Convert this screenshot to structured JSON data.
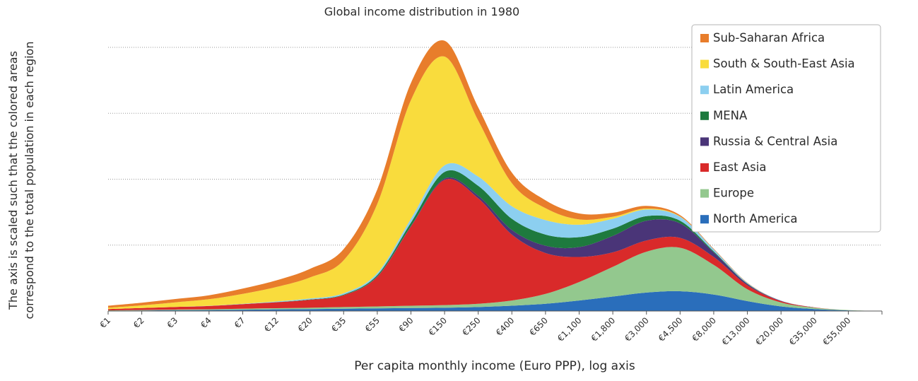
{
  "chart_data": {
    "type": "area",
    "stacked": true,
    "title": "Global income distribution in 1980",
    "xlabel": "Per capita monthly income (Euro PPP), log axis",
    "ylabel_lines": [
      "The axis is scaled such that the colored areas",
      "correspond to the total population in each region"
    ],
    "x_ticks": [
      "€1",
      "€2",
      "€3",
      "€4",
      "€7",
      "€12",
      "€20",
      "€35",
      "€55",
      "€90",
      "€150",
      "€250",
      "€400",
      "€650",
      "€1,100",
      "€1,800",
      "€3,000",
      "€4,500",
      "€8,000",
      "€13,000",
      "€20,000",
      "€35,000",
      "€55,000"
    ],
    "x_positions": [
      0,
      0.5,
      1,
      1.5,
      2,
      2.5,
      3,
      3.5,
      4,
      4.5,
      5,
      5.5,
      6,
      6.5,
      7,
      7.5,
      8,
      8.5,
      9,
      9.5,
      10,
      10.5,
      11,
      11.5
    ],
    "ylim": [
      0,
      4.0
    ],
    "y_gridlines": [
      1,
      2,
      3,
      4
    ],
    "legend_position": "top-right",
    "series": [
      {
        "name": "North America",
        "color": "#2a6ebb",
        "values": [
          0.005,
          0.008,
          0.012,
          0.015,
          0.02,
          0.025,
          0.03,
          0.035,
          0.04,
          0.045,
          0.05,
          0.06,
          0.08,
          0.11,
          0.16,
          0.22,
          0.28,
          0.3,
          0.25,
          0.15,
          0.07,
          0.03,
          0.01,
          0.0
        ]
      },
      {
        "name": "Europe",
        "color": "#93c88e",
        "values": [
          0.005,
          0.008,
          0.01,
          0.012,
          0.015,
          0.018,
          0.02,
          0.025,
          0.03,
          0.035,
          0.04,
          0.05,
          0.08,
          0.15,
          0.28,
          0.45,
          0.62,
          0.66,
          0.45,
          0.18,
          0.06,
          0.02,
          0.005,
          0.0
        ]
      },
      {
        "name": "East Asia",
        "color": "#d92a2a",
        "values": [
          0.02,
          0.03,
          0.04,
          0.05,
          0.07,
          0.09,
          0.12,
          0.18,
          0.45,
          1.2,
          1.9,
          1.6,
          1.0,
          0.62,
          0.38,
          0.22,
          0.17,
          0.15,
          0.12,
          0.06,
          0.02,
          0.005,
          0.0,
          0.0
        ]
      },
      {
        "name": "Russia & Central Asia",
        "color": "#4a3578",
        "values": [
          0.0,
          0.0,
          0.0,
          0.0,
          0.0,
          0.0,
          0.0,
          0.0,
          0.005,
          0.01,
          0.02,
          0.04,
          0.07,
          0.11,
          0.15,
          0.25,
          0.3,
          0.22,
          0.07,
          0.02,
          0.005,
          0.0,
          0.0,
          0.0
        ]
      },
      {
        "name": "MENA",
        "color": "#1e7a3e",
        "values": [
          0.0,
          0.0,
          0.0,
          0.0,
          0.0,
          0.002,
          0.005,
          0.01,
          0.02,
          0.05,
          0.1,
          0.15,
          0.17,
          0.17,
          0.15,
          0.11,
          0.07,
          0.04,
          0.015,
          0.005,
          0.0,
          0.0,
          0.0,
          0.0
        ]
      },
      {
        "name": "Latin America",
        "color": "#8ccff0",
        "values": [
          0.0,
          0.0,
          0.0,
          0.002,
          0.005,
          0.01,
          0.015,
          0.02,
          0.03,
          0.06,
          0.1,
          0.14,
          0.19,
          0.22,
          0.19,
          0.15,
          0.1,
          0.06,
          0.03,
          0.01,
          0.003,
          0.0,
          0.0,
          0.0
        ]
      },
      {
        "name": "South & South-East Asia",
        "color": "#f9dc3d",
        "values": [
          0.02,
          0.04,
          0.07,
          0.1,
          0.15,
          0.22,
          0.32,
          0.5,
          1.05,
          1.8,
          1.65,
          0.85,
          0.35,
          0.18,
          0.08,
          0.03,
          0.015,
          0.005,
          0.0,
          0.0,
          0.0,
          0.0,
          0.0,
          0.0
        ]
      },
      {
        "name": "Sub-Saharan Africa",
        "color": "#e87d2b",
        "values": [
          0.03,
          0.04,
          0.05,
          0.06,
          0.08,
          0.1,
          0.13,
          0.17,
          0.22,
          0.26,
          0.24,
          0.2,
          0.16,
          0.12,
          0.09,
          0.06,
          0.04,
          0.02,
          0.01,
          0.005,
          0.0,
          0.0,
          0.0,
          0.0
        ]
      }
    ]
  }
}
